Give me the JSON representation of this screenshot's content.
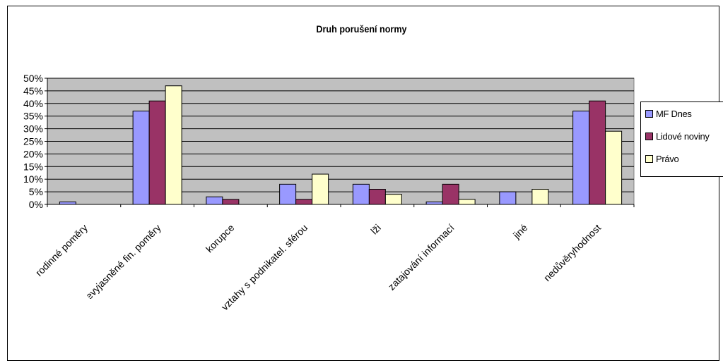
{
  "chart_data": {
    "type": "bar",
    "title": "Druh porušení normy",
    "categories": [
      "rodinné poměry",
      "nevyjasněné fin. poměry",
      "korupce",
      "vztahy s podnikatel. sférou",
      "lži",
      "zatajování informací",
      "jiné",
      "nedůvěryhodnost"
    ],
    "series": [
      {
        "name": "MF Dnes",
        "color": "#9999ff",
        "values": [
          1,
          37,
          3,
          8,
          8,
          1,
          5,
          37
        ]
      },
      {
        "name": "Lidové noviny",
        "color": "#993366",
        "values": [
          0,
          41,
          2,
          2,
          6,
          8,
          0,
          41
        ]
      },
      {
        "name": "Právo",
        "color": "#ffffcc",
        "values": [
          0,
          47,
          0,
          12,
          4,
          2,
          6,
          29
        ]
      }
    ],
    "ylim": [
      0,
      50
    ],
    "ytick_step": 5,
    "ytick_labels": [
      "0%",
      "5%",
      "10%",
      "15%",
      "20%",
      "25%",
      "30%",
      "35%",
      "40%",
      "45%",
      "50%"
    ],
    "y_format": "percent",
    "grid": true,
    "plot_background": "#c0c0c0",
    "legend_position": "right"
  }
}
